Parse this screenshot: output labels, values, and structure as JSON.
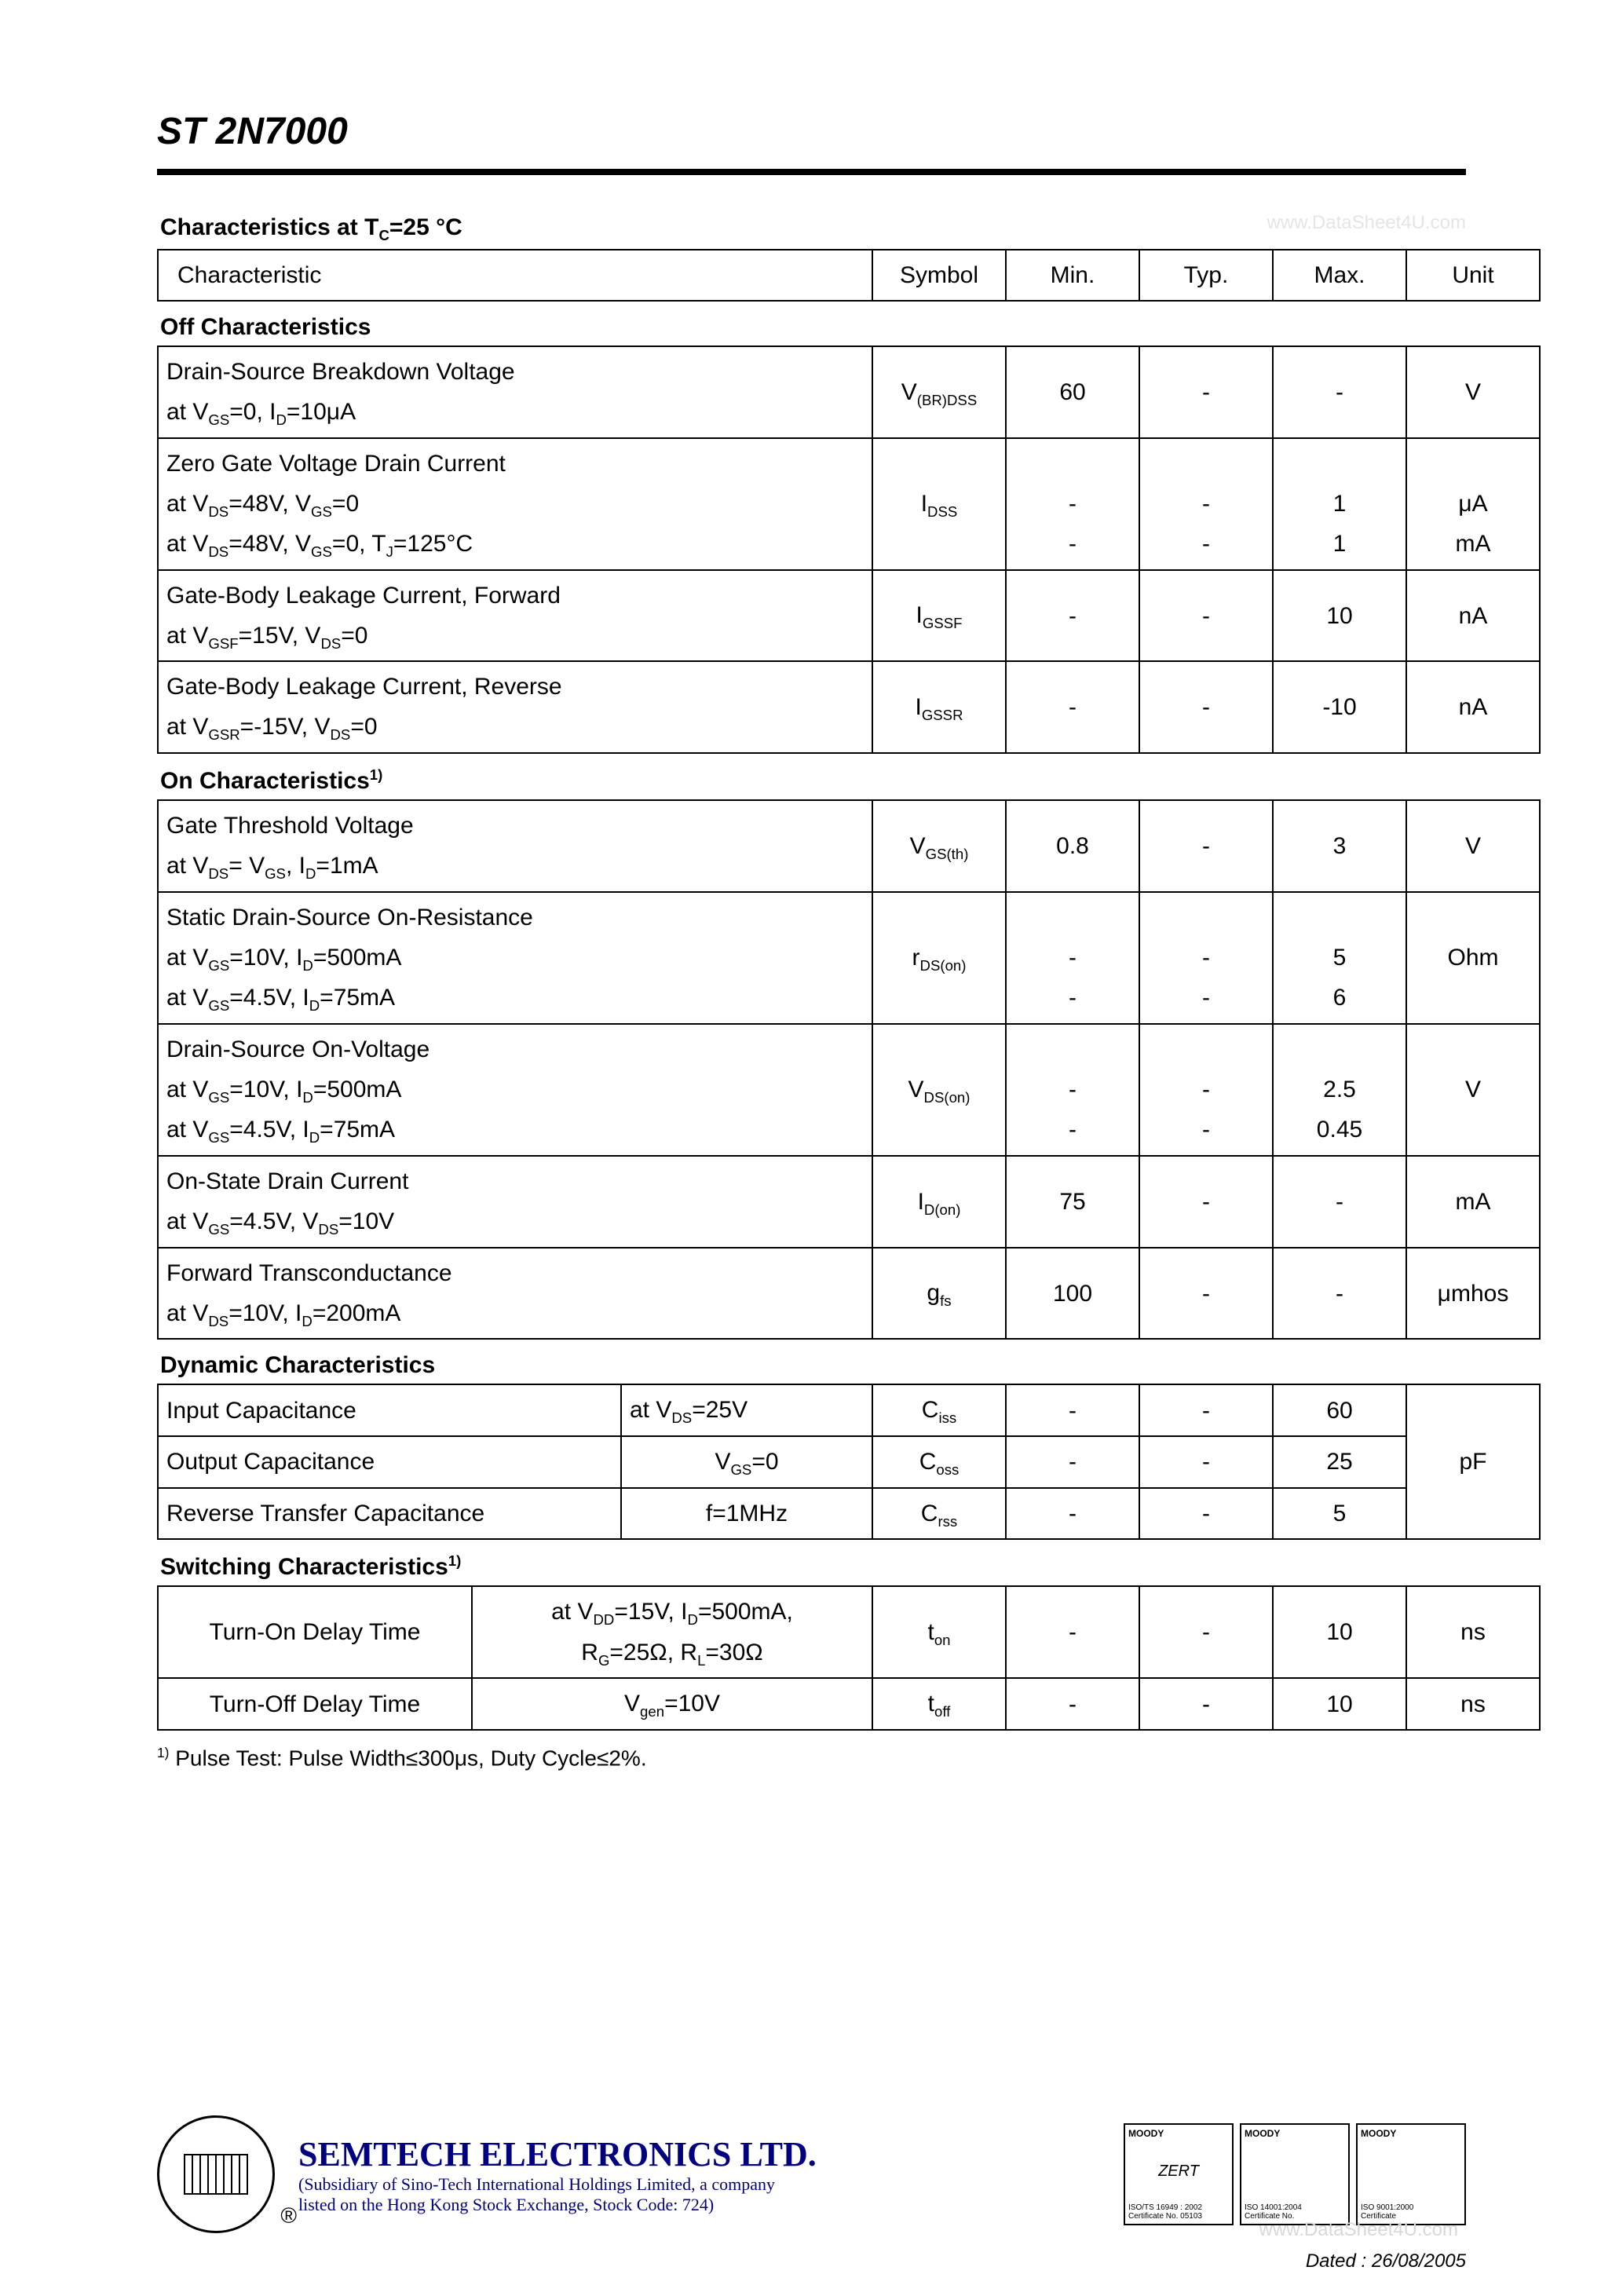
{
  "page": {
    "part_number": "ST 2N7000",
    "watermark_top": "www.DataSheet4U.com",
    "watermark_bottom": "www.DataSheet4U.com",
    "main_heading_prefix": "Characteristics at T",
    "main_heading_sub": "C",
    "main_heading_suffix": "=25 °C",
    "footnote": "Pulse Test: Pulse Width≤300μs, Duty Cycle≤2%.",
    "footnote_marker": "1)",
    "dated": "Dated : 26/08/2005"
  },
  "headers": {
    "characteristic": "Characteristic",
    "symbol": "Symbol",
    "min": "Min.",
    "typ": "Typ.",
    "max": "Max.",
    "unit": "Unit"
  },
  "colors": {
    "text": "#000000",
    "background": "#ffffff",
    "rule": "#000000",
    "watermark": "#e5e5e5",
    "company_blue": "#000080"
  },
  "sections": {
    "off": {
      "title": "Off Characteristics",
      "rows": [
        {
          "char_l1": "Drain-Source Breakdown Voltage",
          "char_l2_html": "at V<sub>GS</sub>=0, I<sub>D</sub>=10μA",
          "symbol_html": "V<sub>(BR)DSS</sub>",
          "min": "60",
          "typ": "-",
          "max": "-",
          "unit": "V"
        },
        {
          "char_l1": "Zero Gate Voltage Drain Current",
          "char_l2_html": "at V<sub>DS</sub>=48V, V<sub>GS</sub>=0",
          "char_l3_html": "at V<sub>DS</sub>=48V, V<sub>GS</sub>=0, T<sub>J</sub>=125°C",
          "symbol_html": "I<sub>DSS</sub>",
          "min_l1": "-",
          "typ_l1": "-",
          "max_l1": "1",
          "unit_l1": "μA",
          "min_l2": "-",
          "typ_l2": "-",
          "max_l2": "1",
          "unit_l2": "mA"
        },
        {
          "char_l1": "Gate-Body Leakage Current, Forward",
          "char_l2_html": "at V<sub>GSF</sub>=15V, V<sub>DS</sub>=0",
          "symbol_html": "I<sub>GSSF</sub>",
          "min": "-",
          "typ": "-",
          "max": "10",
          "unit": "nA"
        },
        {
          "char_l1": "Gate-Body Leakage Current, Reverse",
          "char_l2_html": "at V<sub>GSR</sub>=-15V, V<sub>DS</sub>=0",
          "symbol_html": "I<sub>GSSR</sub>",
          "min": "-",
          "typ": "-",
          "max": "-10",
          "unit": "nA"
        }
      ]
    },
    "on": {
      "title_html": "On Characteristics<sup>1)</sup>",
      "rows": [
        {
          "char_l1": "Gate Threshold Voltage",
          "char_l2_html": "at V<sub>DS</sub>= V<sub>GS</sub>, I<sub>D</sub>=1mA",
          "symbol_html": "V<sub>GS(th)</sub>",
          "min": "0.8",
          "typ": "-",
          "max": "3",
          "unit": "V"
        },
        {
          "char_l1": "Static Drain-Source On-Resistance",
          "char_l2_html": "at V<sub>GS</sub>=10V, I<sub>D</sub>=500mA",
          "char_l3_html": "at V<sub>GS</sub>=4.5V, I<sub>D</sub>=75mA",
          "symbol_html": "r<sub>DS(on)</sub>",
          "min_l1": "-",
          "typ_l1": "-",
          "max_l1": "5",
          "min_l2": "-",
          "typ_l2": "-",
          "max_l2": "6",
          "unit": "Ohm"
        },
        {
          "char_l1": "Drain-Source On-Voltage",
          "char_l2_html": "at V<sub>GS</sub>=10V, I<sub>D</sub>=500mA",
          "char_l3_html": "at V<sub>GS</sub>=4.5V, I<sub>D</sub>=75mA",
          "symbol_html": "V<sub>DS(on)</sub>",
          "min_l1": "-",
          "typ_l1": "-",
          "max_l1": "2.5",
          "min_l2": "-",
          "typ_l2": "-",
          "max_l2": "0.45",
          "unit": "V"
        },
        {
          "char_l1": "On-State Drain Current",
          "char_l2_html": "at V<sub>GS</sub>=4.5V, V<sub>DS</sub>=10V",
          "symbol_html": "I<sub>D(on)</sub>",
          "min": "75",
          "typ": "-",
          "max": "-",
          "unit": "mA"
        },
        {
          "char_l1": "Forward Transconductance",
          "char_l2_html": "at V<sub>DS</sub>=10V, I<sub>D</sub>=200mA",
          "symbol_html": "g<sub>fs</sub>",
          "min": "100",
          "typ": "-",
          "max": "-",
          "unit": "μmhos"
        }
      ]
    },
    "dynamic": {
      "title": "Dynamic Characteristics",
      "cond_l1_html": "at V<sub>DS</sub>=25V",
      "cond_l2_html": "V<sub>GS</sub>=0",
      "cond_l3": "f=1MHz",
      "rows": [
        {
          "char": "Input Capacitance",
          "symbol_html": "C<sub>iss</sub>",
          "min": "-",
          "typ": "-",
          "max": "60"
        },
        {
          "char": "Output Capacitance",
          "symbol_html": "C<sub>oss</sub>",
          "min": "-",
          "typ": "-",
          "max": "25"
        },
        {
          "char": "Reverse Transfer Capacitance",
          "symbol_html": "C<sub>rss</sub>",
          "min": "-",
          "typ": "-",
          "max": "5"
        }
      ],
      "unit": "pF"
    },
    "switching": {
      "title_html": "Switching Characteristics<sup>1)</sup>",
      "cond_r1_html": "at V<sub>DD</sub>=15V, I<sub>D</sub>=500mA,<br>R<sub>G</sub>=25Ω, R<sub>L</sub>=30Ω",
      "cond_r2_html": "V<sub>gen</sub>=10V",
      "rows": [
        {
          "char": "Turn-On Delay Time",
          "symbol_html": "t<sub>on</sub>",
          "min": "-",
          "typ": "-",
          "max": "10",
          "unit": "ns"
        },
        {
          "char": "Turn-Off Delay Time",
          "symbol_html": "t<sub>off</sub>",
          "min": "-",
          "typ": "-",
          "max": "10",
          "unit": "ns"
        }
      ]
    }
  },
  "footer": {
    "company_name": "SEMTECH ELECTRONICS LTD.",
    "company_sub1": "(Subsidiary of Sino-Tech International Holdings Limited, a company",
    "company_sub2": "listed on the Hong Kong Stock Exchange, Stock Code: 724)",
    "certs": [
      {
        "top": "MOODY",
        "mid": "ZERT",
        "bot": "ISO/TS 16949 : 2002\nCertificate No. 05103"
      },
      {
        "top": "MOODY",
        "mid": "",
        "bot": "ISO 14001:2004\nCertificate No."
      },
      {
        "top": "MOODY",
        "mid": "",
        "bot": "ISO 9001:2000\nCertificate"
      }
    ]
  }
}
